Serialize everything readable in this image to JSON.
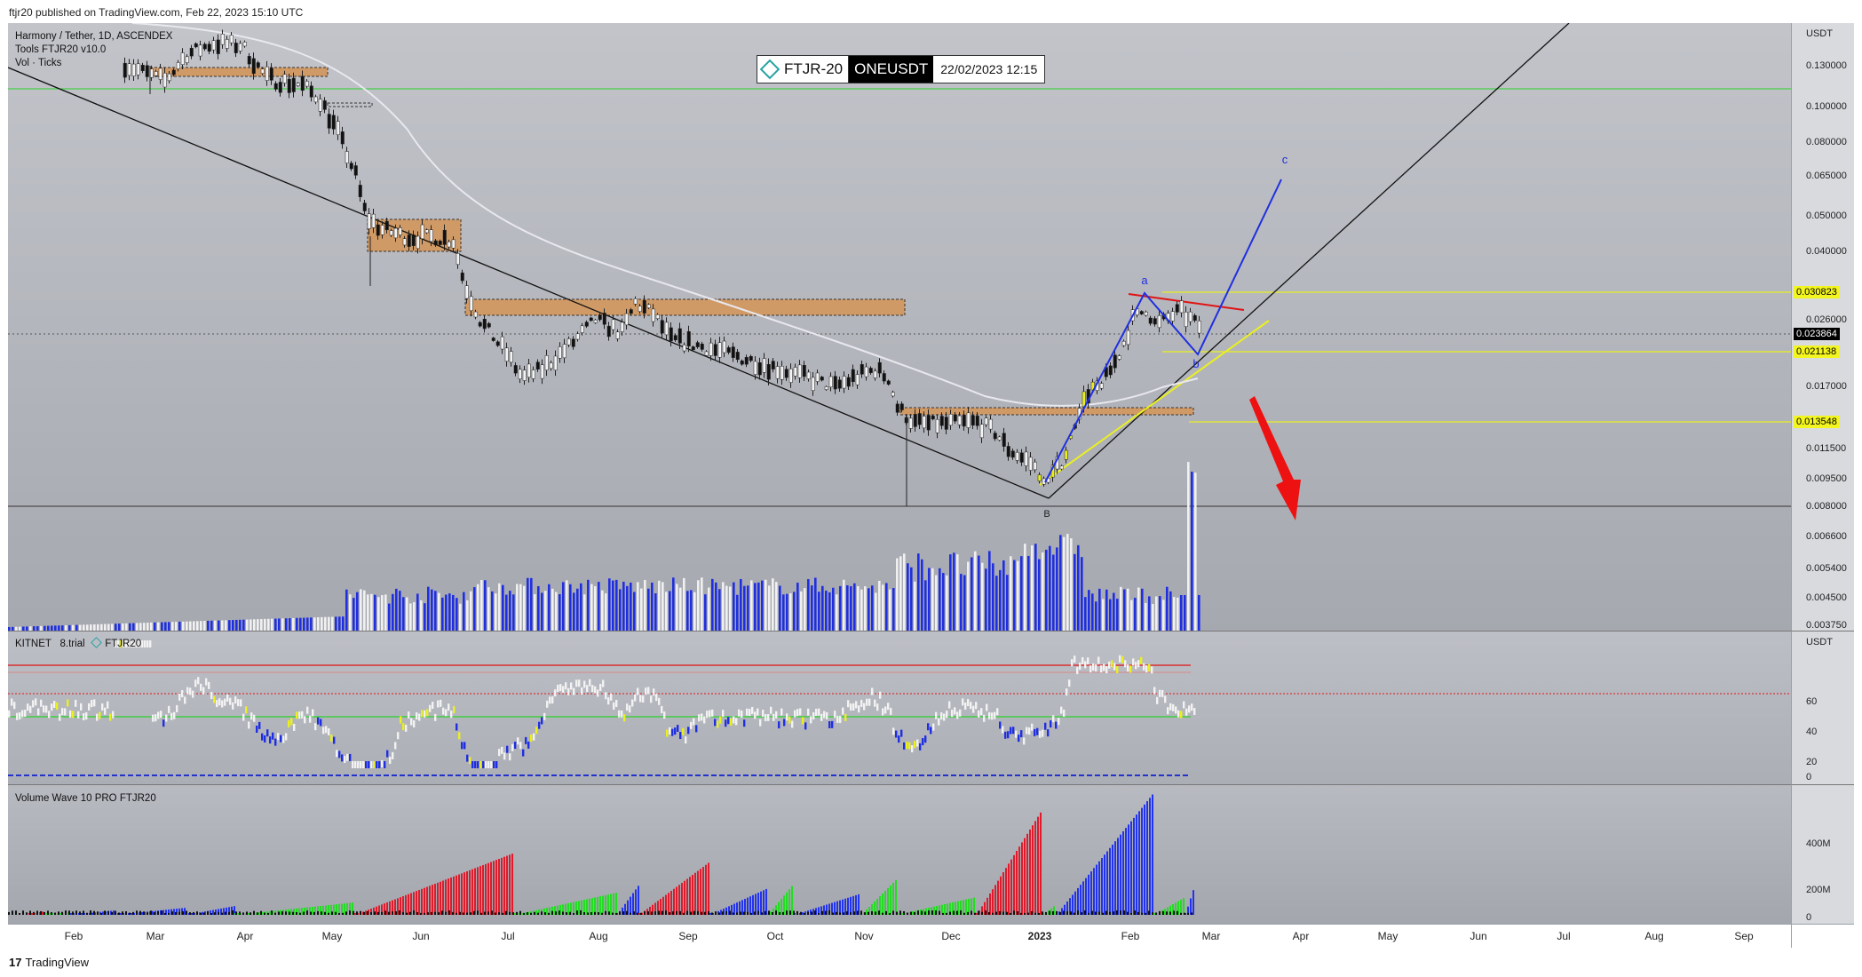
{
  "header": {
    "published": "ftjr20 published on TradingView.com, Feb 22, 2023 15:10 UTC"
  },
  "badge": {
    "brand": "FTJR-20",
    "symbol": "ONEUSDT",
    "datetime": "22/02/2023 12:15"
  },
  "legend_main": [
    "Harmony / Tether, 1D, ASCENDEX",
    "Tools  FTJR20  v10.0",
    "Vol · Ticks"
  ],
  "legend_osc": {
    "name": "KITNET",
    "version": "8.trial",
    "brand": "FTJR20"
  },
  "legend_vw": "Volume Wave 10 PRO FTJR20",
  "axis_main": {
    "unit": "USDT",
    "ticks": [
      "0.130000",
      "0.100000",
      "0.080000",
      "0.065000",
      "0.050000",
      "0.040000",
      "0.026000",
      "0.017000",
      "0.011500",
      "0.009500",
      "0.008000",
      "0.006600",
      "0.005400",
      "0.004500",
      "0.003750"
    ]
  },
  "price_labels": {
    "level1": "0.030823",
    "current": "0.023864",
    "level2": "0.021138",
    "level3": "0.013548"
  },
  "axis_osc": {
    "unit": "USDT",
    "ticks": [
      "60",
      "40",
      "20",
      "0"
    ]
  },
  "axis_vw": {
    "ticks": [
      "400M",
      "200M",
      "0"
    ]
  },
  "time_axis": [
    "Feb",
    "Mar",
    "Apr",
    "May",
    "Jun",
    "Jul",
    "Aug",
    "Sep",
    "Oct",
    "Nov",
    "Dec",
    "2023",
    "Feb",
    "Mar",
    "Apr",
    "May",
    "Jun",
    "Jul",
    "Aug",
    "Sep"
  ],
  "wave_labels": {
    "a": "a",
    "b": "b",
    "c": "c",
    "bottom": "B"
  },
  "footer": {
    "brand": "TradingView"
  },
  "colors": {
    "panel_bg": "#b4b6be",
    "level_line": "#eaf01e",
    "ma_line": "#e8e8ee",
    "green_line": "#2ad12a",
    "red_line": "#e01414",
    "wave_blue": "#1f2fe0",
    "arrow_red": "#ee1111",
    "zone": "#d09a66"
  },
  "chart_data": {
    "type": "line",
    "title": "Harmony / Tether, 1D",
    "x": [
      "Feb",
      "Mar",
      "Apr",
      "May",
      "Jun",
      "Jul",
      "Aug",
      "Sep",
      "Oct",
      "Nov",
      "Dec",
      "2023",
      "Feb"
    ],
    "series": [
      {
        "values": [
          0.14,
          0.13,
          0.145,
          0.11,
          0.045,
          0.022,
          0.03,
          0.023,
          0.021,
          0.02,
          0.016,
          0.0095,
          0.027
        ]
      }
    ],
    "ylim": [
      0.00375,
      0.14
    ],
    "yscale": "log",
    "horizontal_levels": [
      0.030823,
      0.021138,
      0.013548
    ],
    "current_price": 0.023864
  }
}
